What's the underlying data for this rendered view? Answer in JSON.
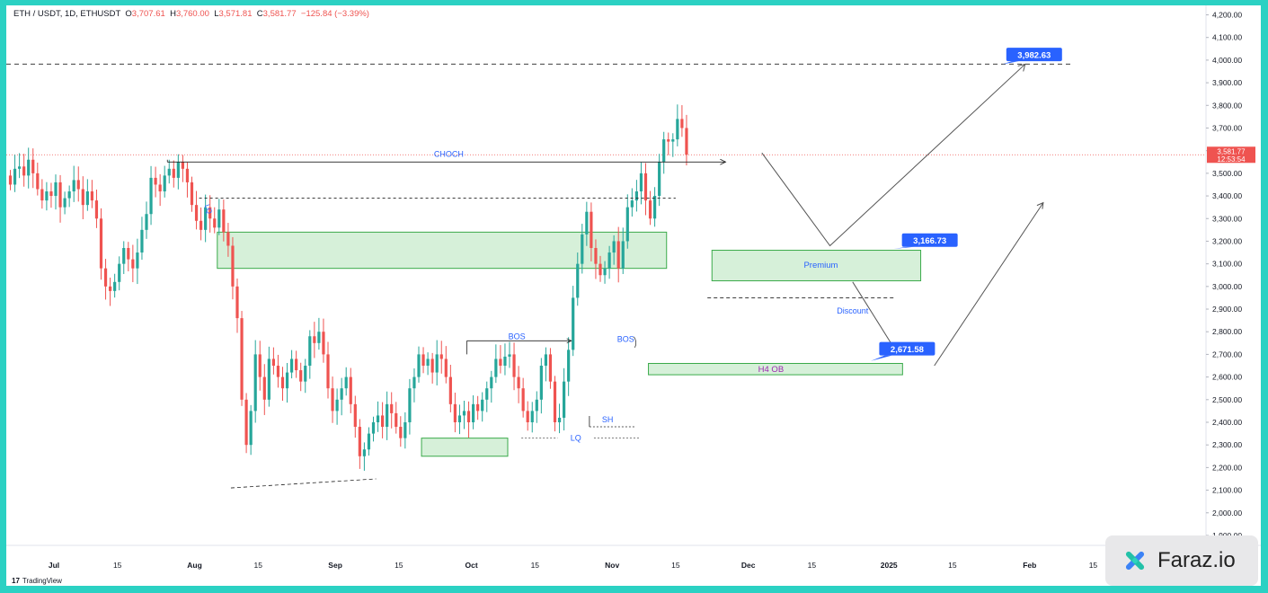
{
  "header": {
    "symbol": "ETH / USDT, 1D, ETHUSDT",
    "o_label": "O",
    "o": "3,707.61",
    "h_label": "H",
    "h": "3,760.00",
    "l_label": "L",
    "l": "3,571.81",
    "c_label": "C",
    "c": "3,581.77",
    "change": "−125.84 (−3.39%)"
  },
  "watermark": {
    "tradingview": "TradingView",
    "faraz": "Faraz.io"
  },
  "price_tag": {
    "price": "3,581.77",
    "timer": "12:53:54"
  },
  "chart_data": {
    "type": "candlestick",
    "symbol": "ETH / USDT",
    "timeframe": "1D",
    "ylim": [
      1850,
      4220
    ],
    "y_ticks": [
      "1,900.00",
      "2,000.00",
      "2,100.00",
      "2,200.00",
      "2,300.00",
      "2,400.00",
      "2,500.00",
      "2,600.00",
      "2,700.00",
      "2,800.00",
      "2,900.00",
      "3,000.00",
      "3,100.00",
      "3,200.00",
      "3,300.00",
      "3,400.00",
      "3,500.00",
      "3,600.00",
      "3,700.00",
      "3,800.00",
      "3,900.00",
      "4,000.00",
      "4,100.00",
      "4,200.00"
    ],
    "x_ticks": [
      {
        "label": "Jul",
        "day": 10
      },
      {
        "label": "15",
        "day": 24
      },
      {
        "label": "Aug",
        "day": 41
      },
      {
        "label": "15",
        "day": 55
      },
      {
        "label": "Sep",
        "day": 72
      },
      {
        "label": "15",
        "day": 86
      },
      {
        "label": "Oct",
        "day": 102
      },
      {
        "label": "15",
        "day": 116
      },
      {
        "label": "Nov",
        "day": 133
      },
      {
        "label": "15",
        "day": 147
      },
      {
        "label": "Dec",
        "day": 163
      },
      {
        "label": "15",
        "day": 177
      },
      {
        "label": "2025",
        "day": 194
      },
      {
        "label": "15",
        "day": 208
      },
      {
        "label": "Feb",
        "day": 225
      },
      {
        "label": "15",
        "day": 239
      }
    ],
    "candles_close": [
      3450,
      3520,
      3530,
      3490,
      3560,
      3500,
      3430,
      3380,
      3420,
      3400,
      3460,
      3350,
      3390,
      3420,
      3470,
      3430,
      3360,
      3420,
      3380,
      3300,
      3080,
      3000,
      2980,
      3020,
      3100,
      3170,
      3120,
      3080,
      3150,
      3250,
      3320,
      3480,
      3450,
      3420,
      3490,
      3520,
      3480,
      3550,
      3520,
      3460,
      3360,
      3290,
      3250,
      3350,
      3300,
      3260,
      3340,
      3240,
      3180,
      3000,
      2860,
      2500,
      2300,
      2450,
      2700,
      2600,
      2500,
      2680,
      2650,
      2600,
      2550,
      2620,
      2680,
      2630,
      2580,
      2650,
      2780,
      2750,
      2800,
      2700,
      2550,
      2450,
      2500,
      2550,
      2600,
      2480,
      2380,
      2250,
      2280,
      2350,
      2400,
      2430,
      2380,
      2480,
      2440,
      2380,
      2330,
      2400,
      2550,
      2600,
      2700,
      2650,
      2680,
      2620,
      2700,
      2680,
      2600,
      2480,
      2400,
      2430,
      2450,
      2400,
      2480,
      2450,
      2500,
      2550,
      2600,
      2680,
      2650,
      2690,
      2700,
      2600,
      2550,
      2450,
      2400,
      2450,
      2500,
      2650,
      2700,
      2580,
      2400,
      2420,
      2580,
      2720,
      2950,
      3100,
      3230,
      3330,
      3170,
      3100,
      3050,
      3080,
      3150,
      3200,
      3080,
      3200,
      3350,
      3380,
      3420,
      3500,
      3380,
      3300,
      3400,
      3550,
      3650,
      3640,
      3650,
      3740,
      3700,
      3582
    ],
    "pivot_levels": {
      "choch": 3550,
      "choch_start": 3560,
      "swing_high_break": 3390,
      "recent_low_swing": 2380,
      "lq": 2330,
      "low_point": 2110,
      "discount_line": 2950,
      "target": 3982.63
    },
    "zones": [
      {
        "label": "",
        "top": 3240,
        "bottom": 3080
      },
      {
        "label": "",
        "top": 2330,
        "bottom": 2250
      },
      {
        "label": "Premium",
        "top": 3160,
        "bottom": 3025
      },
      {
        "label": "H4 OB",
        "top": 2660,
        "bottom": 2610
      }
    ],
    "annotations": {
      "choch": "CHOCH",
      "bos1": "BOS",
      "bos2": "BOS",
      "sh": "SH",
      "lq": "LQ",
      "discount": "Discount",
      "premium": "Premium",
      "h4ob": "H4 OB",
      "lq_small": "LQ"
    },
    "targets": [
      {
        "label": "3,982.63",
        "value": 3982.63
      },
      {
        "label": "3,166.73",
        "value": 3166.73
      },
      {
        "label": "2,671.58",
        "value": 2671.58
      }
    ],
    "current_price": 3581.77,
    "colors": {
      "up": "#26a69a",
      "down": "#ef5350",
      "zone_fill": "#c8ebcc",
      "zone_stroke": "#3aaa4a",
      "label_bg": "#2962ff",
      "text_blue": "#2962ff"
    }
  }
}
